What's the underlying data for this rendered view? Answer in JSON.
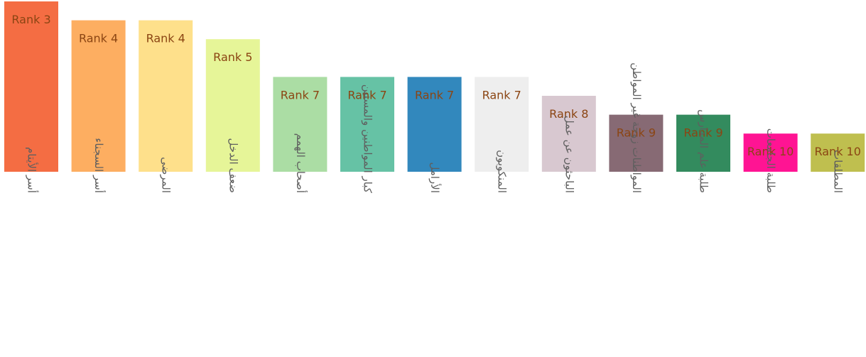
{
  "chart_data": {
    "type": "bar",
    "categories": [
      "أسر الأيتام",
      "أسر السجناء",
      "المرضى",
      "ضعف الدخل",
      "أصحاب الهمم",
      "كبار المواطنين والمسنين",
      "الأرامل",
      "المنكوبون",
      "الباحثون عن عمل",
      "المواطنات زوجة غير المواطن",
      "طلبة علم المدارس",
      "طلبة الجامعات",
      "المطلقات"
    ],
    "values": [
      3,
      4,
      4,
      5,
      7,
      7,
      7,
      7,
      8,
      9,
      9,
      10,
      10
    ],
    "data_labels": [
      "Rank 3",
      "Rank 4",
      "Rank 4",
      "Rank 5",
      "Rank 7",
      "Rank 7",
      "Rank 7",
      "Rank 7",
      "Rank 8",
      "Rank 9",
      "Rank 9",
      "Rank 10",
      "Rank 10"
    ],
    "colors": [
      "#F46D43",
      "#FDAE61",
      "#FEE08B",
      "#E6F598",
      "#ABDDA4",
      "#66C2A5",
      "#3288BD",
      "#EEEEEE",
      "#D8C8D0",
      "#876A74",
      "#338B5E",
      "#FF1493",
      "#BFBF4F"
    ],
    "label_color": "#8B4513",
    "axis_label_color": "#5f5f5f",
    "title": "",
    "xlabel": "",
    "ylabel": "",
    "grid": false,
    "legend": false
  }
}
